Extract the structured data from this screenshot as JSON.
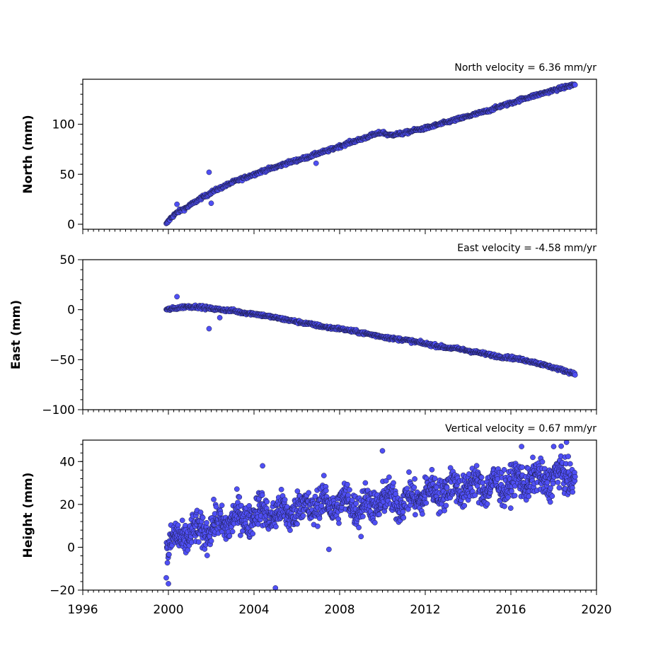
{
  "chart_data": [
    {
      "type": "scatter",
      "title": "North velocity = 6.36 mm/yr",
      "xlabel": "",
      "ylabel": "North (mm)",
      "xlim": [
        1996,
        2020
      ],
      "ylim": [
        -5,
        145
      ],
      "yticks": [
        0,
        50,
        100
      ],
      "xticks": [
        1996,
        2000,
        2004,
        2008,
        2012,
        2016,
        2020
      ],
      "xtick_labels_shown": false,
      "marker_color": "#4f4ff5",
      "edge_color": "#1a1a40",
      "series": [
        {
          "x": [
            1999.9,
            2000.1,
            2000.3,
            2000.5,
            2000.8,
            2001.0,
            2001.3,
            2001.5,
            2001.8,
            2002.0,
            2002.3,
            2002.6,
            2003.0,
            2003.5,
            2004.0,
            2004.5,
            2005.0,
            2005.5,
            2006.0,
            2006.5,
            2007.0,
            2007.5,
            2008.0,
            2008.5,
            2009.0,
            2009.5,
            2010.0,
            2010.3,
            2010.6,
            2011.0,
            2011.5,
            2012.0,
            2012.5,
            2013.0,
            2013.5,
            2014.0,
            2014.5,
            2015.0,
            2015.5,
            2016.0,
            2016.5,
            2017.0,
            2017.5,
            2018.0,
            2018.5,
            2019.0
          ],
          "y": [
            0,
            6,
            10,
            13,
            16,
            19,
            23,
            26,
            29,
            32,
            35,
            38,
            42,
            46,
            50,
            54,
            57,
            61,
            64,
            67,
            71,
            74,
            78,
            82,
            85,
            89,
            92,
            89,
            90,
            91,
            94,
            96,
            99,
            102,
            105,
            108,
            111,
            114,
            118,
            121,
            125,
            128,
            131,
            134,
            137,
            140
          ]
        }
      ],
      "outliers": {
        "x": [
          2001.9,
          2000.4,
          2002.0,
          2006.9
        ],
        "y": [
          52,
          20,
          21,
          61
        ]
      }
    },
    {
      "type": "scatter",
      "title": "East velocity = -4.58 mm/yr",
      "xlabel": "",
      "ylabel": "East (mm)",
      "xlim": [
        1996,
        2020
      ],
      "ylim": [
        -100,
        50
      ],
      "yticks": [
        -100,
        -50,
        0,
        50
      ],
      "xticks": [
        1996,
        2000,
        2004,
        2008,
        2012,
        2016,
        2020
      ],
      "xtick_labels_shown": false,
      "marker_color": "#4f4ff5",
      "edge_color": "#1a1a40",
      "series": [
        {
          "x": [
            1999.9,
            2000.2,
            2000.5,
            2000.8,
            2001.1,
            2001.4,
            2001.7,
            2002.0,
            2002.5,
            2003.0,
            2003.5,
            2004.0,
            2004.5,
            2005.0,
            2005.5,
            2006.0,
            2006.5,
            2007.0,
            2007.5,
            2008.0,
            2008.5,
            2009.0,
            2009.5,
            2010.0,
            2010.5,
            2011.0,
            2011.5,
            2012.0,
            2012.5,
            2013.0,
            2013.5,
            2014.0,
            2014.5,
            2015.0,
            2015.5,
            2016.0,
            2016.5,
            2017.0,
            2017.5,
            2018.0,
            2018.5,
            2019.0
          ],
          "y": [
            0,
            1,
            2,
            3,
            3,
            3,
            2,
            1,
            0,
            -1,
            -3,
            -4,
            -6,
            -8,
            -10,
            -12,
            -14,
            -16,
            -18,
            -19,
            -21,
            -23,
            -25,
            -27,
            -29,
            -30,
            -32,
            -34,
            -36,
            -38,
            -39,
            -41,
            -43,
            -45,
            -47,
            -48,
            -50,
            -52,
            -55,
            -58,
            -61,
            -64
          ]
        }
      ],
      "outliers": {
        "x": [
          2000.4,
          2001.9,
          2002.4
        ],
        "y": [
          13,
          -19,
          -8
        ]
      }
    },
    {
      "type": "scatter",
      "title": "Vertical velocity = 0.67 mm/yr",
      "xlabel": "",
      "ylabel": "Height (mm)",
      "xlim": [
        1996,
        2020
      ],
      "ylim": [
        -20,
        50
      ],
      "yticks": [
        -20,
        0,
        20,
        40
      ],
      "xticks": [
        1996,
        2000,
        2004,
        2008,
        2012,
        2016,
        2020
      ],
      "xtick_labels": [
        "1996",
        "2000",
        "2004",
        "2008",
        "2012",
        "2016",
        "2020"
      ],
      "xtick_labels_shown": true,
      "marker_color": "#4f4ff5",
      "edge_color": "#1a1a40",
      "series": [
        {
          "x": [
            1999.9,
            2000.2,
            2000.5,
            2000.8,
            2001.0,
            2001.5,
            2002.0,
            2002.5,
            2003.0,
            2003.5,
            2004.0,
            2004.5,
            2005.0,
            2005.5,
            2006.0,
            2006.5,
            2007.0,
            2007.5,
            2008.0,
            2008.5,
            2009.0,
            2009.5,
            2010.0,
            2010.5,
            2011.0,
            2011.5,
            2012.0,
            2012.5,
            2013.0,
            2013.5,
            2014.0,
            2014.5,
            2015.0,
            2015.5,
            2016.0,
            2016.5,
            2017.0,
            2017.5,
            2018.0,
            2018.5,
            2019.0
          ],
          "y": [
            -3,
            2,
            5,
            6,
            5,
            8,
            9,
            11,
            13,
            14,
            15,
            17,
            15,
            16,
            18,
            19,
            20,
            20,
            20,
            21,
            19,
            20,
            22,
            22,
            21,
            23,
            25,
            26,
            27,
            28,
            28,
            29,
            28,
            29,
            30,
            31,
            32,
            31,
            33,
            34,
            33
          ]
        }
      ],
      "spread": 7,
      "outliers": {
        "x": [
          2000.0,
          2005.0,
          2004.4,
          2016.5,
          2018.0,
          2018.6,
          2007.5,
          2009.0,
          2010.0
        ],
        "y": [
          -17,
          -19,
          38,
          47,
          47,
          49,
          -1,
          5,
          45
        ]
      }
    }
  ]
}
